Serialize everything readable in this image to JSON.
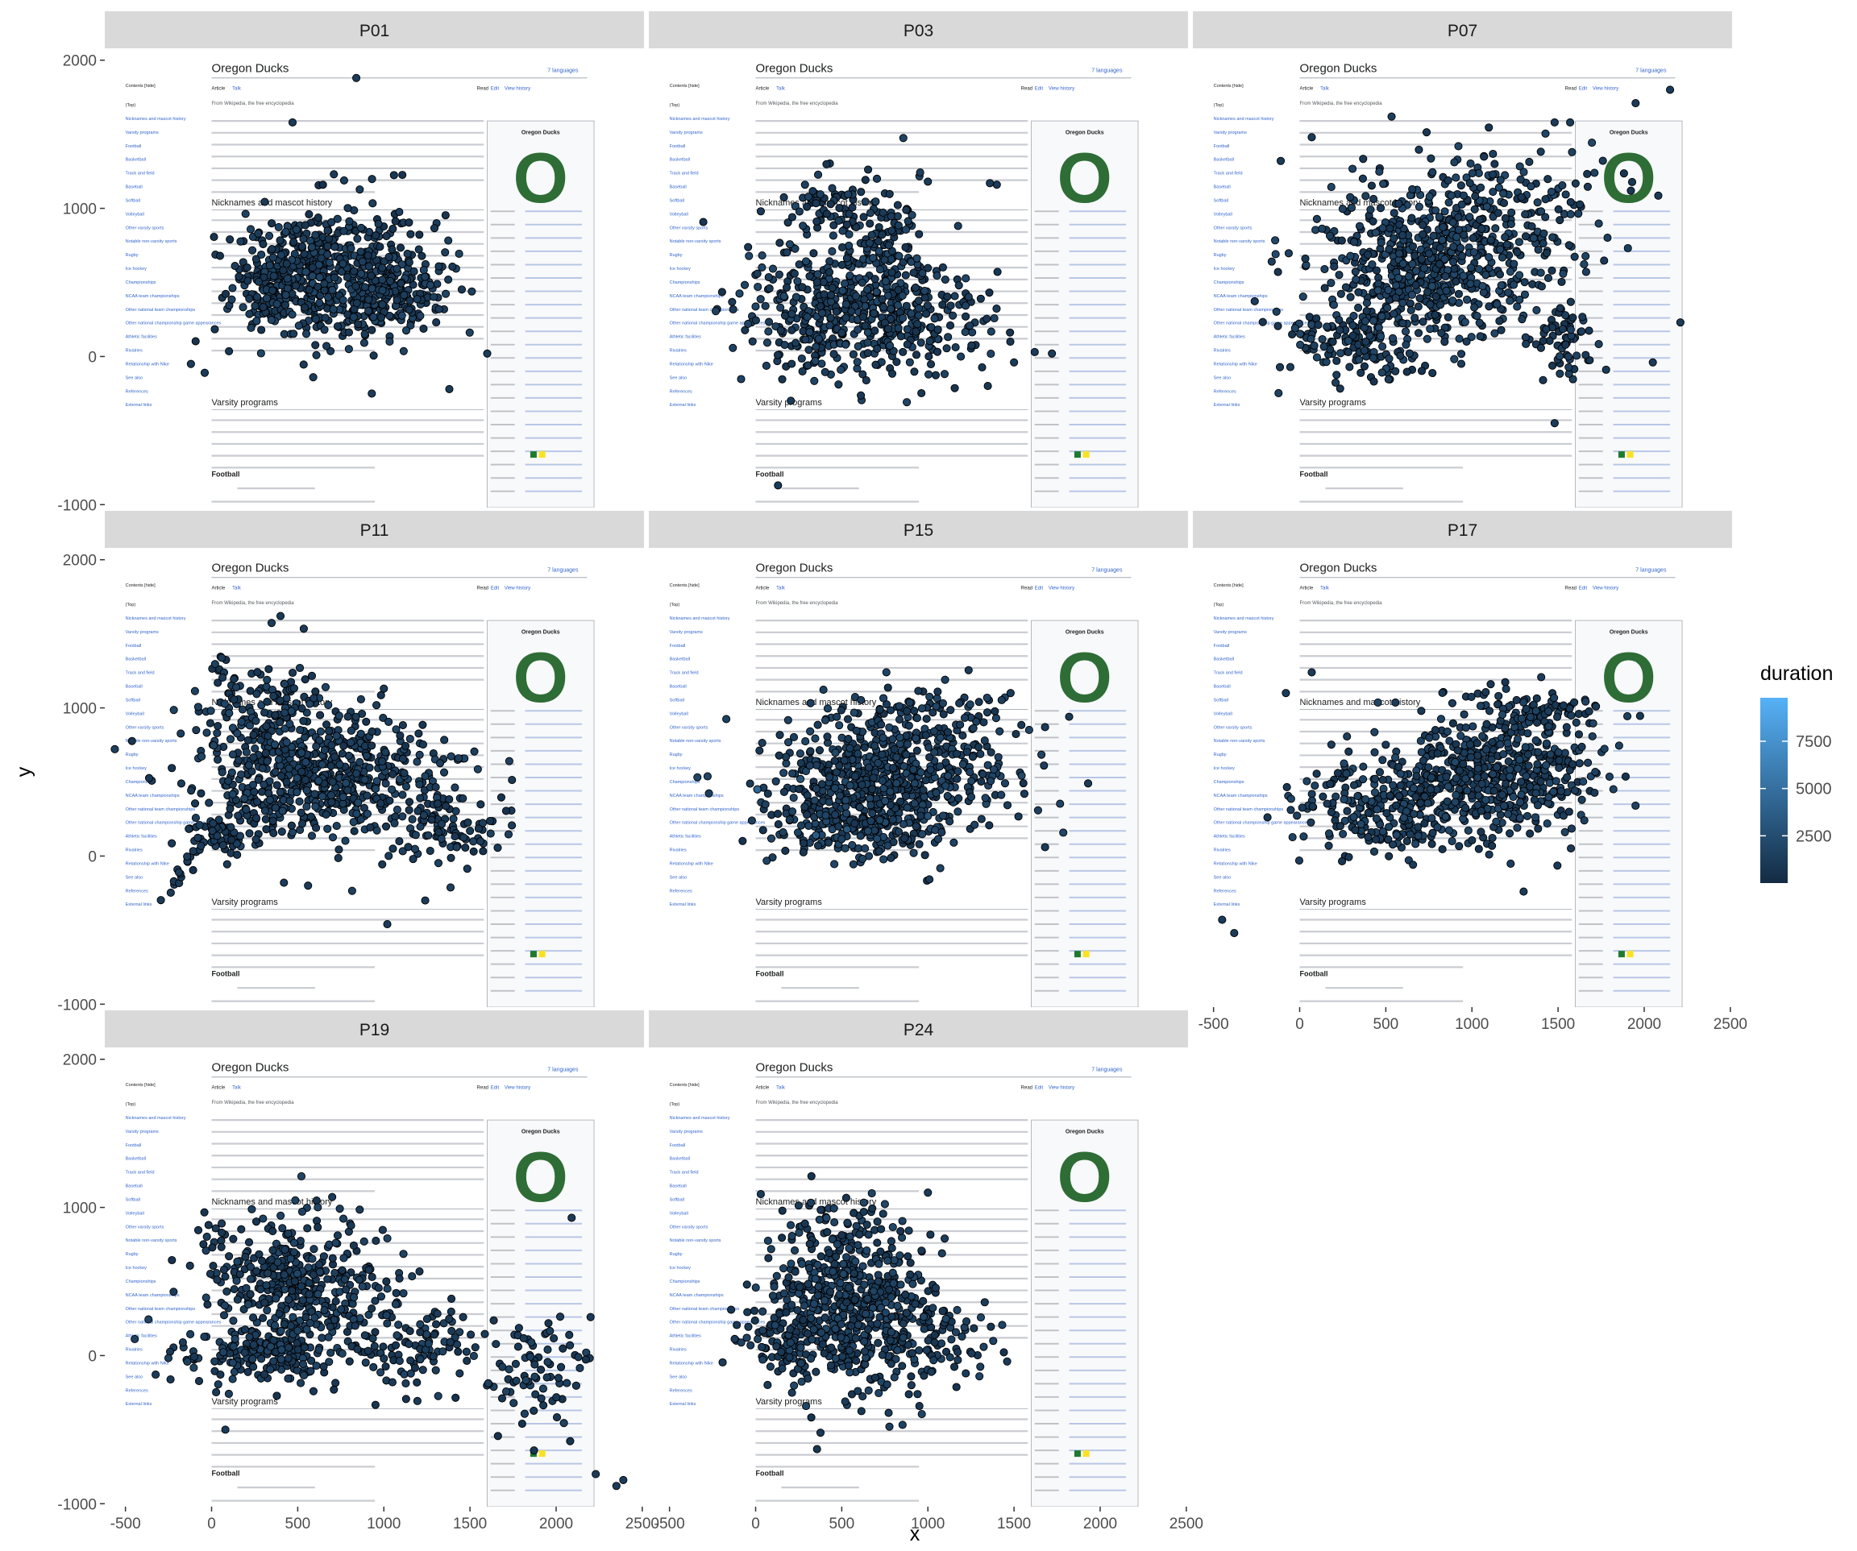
{
  "chart_data": {
    "type": "scatter",
    "facet_by": "participant",
    "xlabel": "x",
    "ylabel": "y",
    "xlim": [
      -620,
      2510
    ],
    "ylim": [
      -1020,
      2080
    ],
    "x_ticks": [
      -500,
      0,
      500,
      1000,
      1500,
      2000,
      2500
    ],
    "y_ticks": [
      -1000,
      0,
      1000,
      2000
    ],
    "background_image": {
      "description": "Wikipedia article screenshot",
      "title": "Oregon Ducks",
      "languages": "7 languages",
      "tabs": [
        "Article",
        "Talk"
      ],
      "actions": [
        "Read",
        "Edit",
        "View history"
      ],
      "tagline": "From Wikipedia, the free encyclopedia",
      "toc": [
        "Contents [hide]",
        "(Top)",
        "Nicknames and mascot history",
        "Varsity programs",
        "Football",
        "Basketball",
        "Track and field",
        "Baseball",
        "Softball",
        "Volleyball",
        "Other varsity sports",
        "Notable non-varsity sports",
        "Rugby",
        "Ice hockey",
        "Championships",
        "NCAA team championships",
        "Other national team championships",
        "Other national championship game appearances",
        "Athletic facilities",
        "Rivalries",
        "Relationship with Nike",
        "See also",
        "References",
        "External links"
      ],
      "section_headings": [
        "Nicknames and mascot history",
        "Varsity programs",
        "Football"
      ],
      "infobox_title": "Oregon Ducks",
      "infobox_logo": "O"
    },
    "color_scale": {
      "title": "duration",
      "breaks": [
        2500,
        5000,
        7500
      ],
      "low_color": "#132B43",
      "high_color": "#56B1F7",
      "min": 0,
      "max": 9800
    },
    "point_color": "#15273d",
    "panels": [
      {
        "label": "P01",
        "clusters": [
          {
            "cx": 500,
            "cy": 500,
            "sx": 200,
            "sy": 190,
            "n": 420,
            "d": 1500
          },
          {
            "cx": 1020,
            "cy": 430,
            "sx": 170,
            "sy": 150,
            "n": 260,
            "d": 1500
          },
          {
            "cx": 820,
            "cy": 850,
            "sx": 260,
            "sy": 170,
            "n": 90,
            "d": 1200
          }
        ],
        "outliers": [
          [
            -120,
            -50
          ],
          [
            -40,
            -110
          ],
          [
            270,
            830
          ],
          [
            470,
            1580
          ],
          [
            590,
            -140
          ],
          [
            840,
            1880
          ],
          [
            710,
            1230
          ],
          [
            1380,
            -220
          ],
          [
            930,
            -250
          ],
          [
            1600,
            20
          ]
        ]
      },
      {
        "label": "P03",
        "clusters": [
          {
            "cx": 420,
            "cy": 300,
            "sx": 260,
            "sy": 230,
            "n": 360,
            "d": 1600
          },
          {
            "cx": 760,
            "cy": 620,
            "sx": 150,
            "sy": 280,
            "n": 170,
            "d": 1600
          },
          {
            "cx": 1000,
            "cy": 240,
            "sx": 240,
            "sy": 170,
            "n": 140,
            "d": 1400
          },
          {
            "cx": 420,
            "cy": 1020,
            "sx": 140,
            "sy": 110,
            "n": 60,
            "d": 1300
          }
        ],
        "outliers": [
          [
            30,
            980
          ],
          [
            1400,
            1160
          ],
          [
            1360,
            1170
          ],
          [
            1620,
            30
          ],
          [
            1720,
            20
          ],
          [
            130,
            -870
          ],
          [
            1180,
            480
          ],
          [
            1000,
            1180
          ],
          [
            1500,
            -40
          ]
        ]
      },
      {
        "label": "P07",
        "clusters": [
          {
            "cx": 760,
            "cy": 620,
            "sx": 360,
            "sy": 260,
            "n": 600,
            "d": 1700
          },
          {
            "cx": 350,
            "cy": 100,
            "sx": 220,
            "sy": 130,
            "n": 150,
            "d": 1600
          },
          {
            "cx": 1200,
            "cy": 1050,
            "sx": 320,
            "sy": 220,
            "n": 150,
            "d": 1600
          },
          {
            "cx": 1500,
            "cy": 150,
            "sx": 110,
            "sy": 120,
            "n": 60,
            "d": 1400
          }
        ],
        "outliers": [
          [
            -110,
            1320
          ],
          [
            70,
            1480
          ],
          [
            1570,
            1580
          ],
          [
            1480,
            1580
          ],
          [
            1950,
            1710
          ],
          [
            2150,
            1800
          ],
          [
            2210,
            230
          ],
          [
            1660,
            10
          ],
          [
            2050,
            -40
          ],
          [
            1480,
            -450
          ]
        ]
      },
      {
        "label": "P11",
        "clusters": [
          {
            "cx": 600,
            "cy": 540,
            "sx": 360,
            "sy": 210,
            "n": 620,
            "d": 1500
          },
          {
            "cx": 300,
            "cy": 1020,
            "sx": 190,
            "sy": 170,
            "n": 130,
            "d": 1500
          },
          {
            "cx": 1350,
            "cy": 220,
            "sx": 170,
            "sy": 120,
            "n": 90,
            "d": 1300
          },
          {
            "cx": 100,
            "cy": 160,
            "sx": 110,
            "sy": 90,
            "n": 50,
            "d": 1200
          }
        ],
        "outliers": [
          [
            400,
            1620
          ],
          [
            1000,
            1130
          ],
          [
            1020,
            -460
          ],
          [
            420,
            -180
          ],
          [
            560,
            -200
          ],
          [
            1170,
            -20
          ],
          [
            1500,
            170
          ],
          [
            1560,
            100
          ],
          [
            1240,
            -300
          ]
        ],
        "tail": {
          "x0": -260,
          "y0": -270,
          "x1": 60,
          "y1": 240,
          "n": 28
        }
      },
      {
        "label": "P15",
        "clusters": [
          {
            "cx": 760,
            "cy": 520,
            "sx": 330,
            "sy": 230,
            "n": 640,
            "d": 1600
          },
          {
            "cx": 560,
            "cy": 230,
            "sx": 220,
            "sy": 120,
            "n": 160,
            "d": 1700
          },
          {
            "cx": 1080,
            "cy": 960,
            "sx": 220,
            "sy": 110,
            "n": 70,
            "d": 1500
          }
        ],
        "outliers": [
          [
            10,
            450
          ],
          [
            1480,
            1100
          ],
          [
            1680,
            870
          ],
          [
            1820,
            940
          ],
          [
            1930,
            490
          ],
          [
            1680,
            60
          ],
          [
            1080,
            160
          ],
          [
            950,
            80
          ],
          [
            1330,
            780
          ],
          [
            1560,
            420
          ]
        ],
        "highlights": [
          [
            10,
            450,
            4300
          ],
          [
            350,
            140,
            3500
          ],
          [
            530,
            180,
            3200
          ],
          [
            1000,
            270,
            2600
          ],
          [
            260,
            520,
            2900
          ]
        ]
      },
      {
        "label": "P17",
        "clusters": [
          {
            "cx": 1150,
            "cy": 560,
            "sx": 280,
            "sy": 190,
            "n": 520,
            "d": 1600
          },
          {
            "cx": 500,
            "cy": 320,
            "sx": 260,
            "sy": 170,
            "n": 240,
            "d": 1600
          },
          {
            "cx": 1330,
            "cy": 980,
            "sx": 170,
            "sy": 70,
            "n": 80,
            "d": 1500
          }
        ],
        "outliers": [
          [
            -380,
            -520
          ],
          [
            -450,
            -430
          ],
          [
            -80,
            1100
          ],
          [
            70,
            1240
          ],
          [
            1720,
            1010
          ],
          [
            1550,
            870
          ],
          [
            1380,
            620
          ],
          [
            1100,
            10
          ],
          [
            1300,
            -240
          ],
          [
            760,
            450
          ]
        ]
      },
      {
        "label": "P19",
        "clusters": [
          {
            "cx": 500,
            "cy": 470,
            "sx": 280,
            "sy": 240,
            "n": 440,
            "d": 1500
          },
          {
            "cx": 300,
            "cy": 0,
            "sx": 260,
            "sy": 100,
            "n": 170,
            "d": 1500
          },
          {
            "cx": 1220,
            "cy": 60,
            "sx": 170,
            "sy": 150,
            "n": 90,
            "d": 1400
          },
          {
            "cx": 1900,
            "cy": -120,
            "sx": 150,
            "sy": 190,
            "n": 80,
            "d": 1400
          }
        ],
        "outliers": [
          [
            2090,
            930
          ],
          [
            2200,
            260
          ],
          [
            2230,
            -800
          ],
          [
            2390,
            -840
          ],
          [
            2350,
            -880
          ],
          [
            1460,
            260
          ],
          [
            1440,
            -120
          ],
          [
            1000,
            -20
          ],
          [
            1050,
            -180
          ],
          [
            80,
            -500
          ],
          [
            700,
            1070
          ]
        ]
      },
      {
        "label": "P24",
        "clusters": [
          {
            "cx": 520,
            "cy": 380,
            "sx": 220,
            "sy": 320,
            "n": 560,
            "d": 1600
          },
          {
            "cx": 900,
            "cy": 130,
            "sx": 250,
            "sy": 150,
            "n": 150,
            "d": 1500
          },
          {
            "cx": 150,
            "cy": 100,
            "sx": 120,
            "sy": 120,
            "n": 70,
            "d": 1400
          }
        ],
        "outliers": [
          [
            30,
            1090
          ],
          [
            1000,
            1100
          ],
          [
            1330,
            360
          ],
          [
            1460,
            -40
          ],
          [
            1020,
            -110
          ],
          [
            350,
            -110
          ],
          [
            520,
            -310
          ],
          [
            1220,
            -120
          ],
          [
            940,
            -260
          ]
        ]
      }
    ]
  }
}
